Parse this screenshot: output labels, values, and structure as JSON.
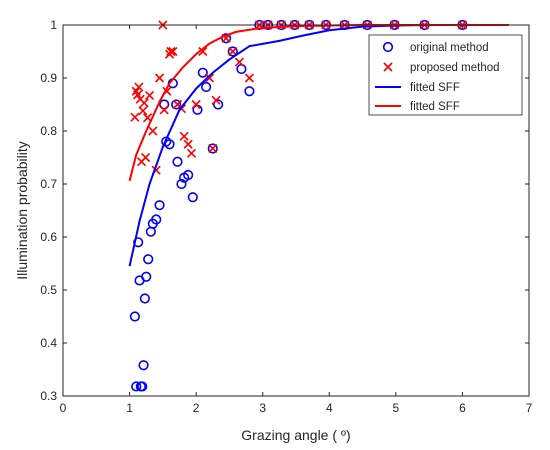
{
  "chart_data": {
    "type": "scatter",
    "xlabel": "Grazing angle ( º)",
    "ylabel": "Illumination probability",
    "xlim": [
      0,
      7
    ],
    "ylim": [
      0.3,
      1.0
    ],
    "xticks": [
      "0",
      "1",
      "2",
      "3",
      "4",
      "5",
      "6",
      "7"
    ],
    "yticks": [
      "0.3",
      "0.4",
      "0.5",
      "0.6",
      "0.7",
      "0.8",
      "0.9",
      "1"
    ],
    "grid": false,
    "legend_position": "top-right",
    "series": [
      {
        "name": "original method",
        "kind": "scatter",
        "marker": "circle",
        "color": "#0000ff",
        "points": [
          [
            1.08,
            0.45
          ],
          [
            1.1,
            0.318
          ],
          [
            1.13,
            0.59
          ],
          [
            1.15,
            0.518
          ],
          [
            1.17,
            0.318
          ],
          [
            1.19,
            0.318
          ],
          [
            1.21,
            0.358
          ],
          [
            1.23,
            0.484
          ],
          [
            1.25,
            0.525
          ],
          [
            1.28,
            0.558
          ],
          [
            1.32,
            0.61
          ],
          [
            1.35,
            0.625
          ],
          [
            1.4,
            0.633
          ],
          [
            1.45,
            0.66
          ],
          [
            1.52,
            0.85
          ],
          [
            1.55,
            0.78
          ],
          [
            1.6,
            0.775
          ],
          [
            1.65,
            0.89
          ],
          [
            1.7,
            0.85
          ],
          [
            1.72,
            0.742
          ],
          [
            1.78,
            0.7
          ],
          [
            1.82,
            0.712
          ],
          [
            1.88,
            0.717
          ],
          [
            1.95,
            0.675
          ],
          [
            2.02,
            0.84
          ],
          [
            2.1,
            0.91
          ],
          [
            2.15,
            0.883
          ],
          [
            2.25,
            0.767
          ],
          [
            2.33,
            0.85
          ],
          [
            2.45,
            0.975
          ],
          [
            2.55,
            0.95
          ],
          [
            2.68,
            0.917
          ],
          [
            2.8,
            0.875
          ],
          [
            2.95,
            1.0
          ],
          [
            3.08,
            1.0
          ],
          [
            3.28,
            1.0
          ],
          [
            3.48,
            1.0
          ],
          [
            3.7,
            1.0
          ],
          [
            3.95,
            1.0
          ],
          [
            4.23,
            1.0
          ],
          [
            4.57,
            1.0
          ],
          [
            4.98,
            1.0
          ],
          [
            5.43,
            1.0
          ],
          [
            6.0,
            1.0
          ]
        ]
      },
      {
        "name": "proposed method",
        "kind": "scatter",
        "marker": "x",
        "color": "#ff0000",
        "points": [
          [
            1.08,
            0.826
          ],
          [
            1.1,
            0.875
          ],
          [
            1.12,
            0.868
          ],
          [
            1.14,
            0.883
          ],
          [
            1.16,
            0.86
          ],
          [
            1.18,
            0.742
          ],
          [
            1.2,
            0.838
          ],
          [
            1.22,
            0.853
          ],
          [
            1.24,
            0.75
          ],
          [
            1.27,
            0.825
          ],
          [
            1.3,
            0.867
          ],
          [
            1.35,
            0.8
          ],
          [
            1.4,
            0.726
          ],
          [
            1.45,
            0.9
          ],
          [
            1.5,
            1.0
          ],
          [
            1.52,
            0.84
          ],
          [
            1.56,
            0.875
          ],
          [
            1.6,
            0.945
          ],
          [
            1.62,
            0.95
          ],
          [
            1.65,
            0.95
          ],
          [
            1.72,
            0.85
          ],
          [
            1.78,
            0.842
          ],
          [
            1.82,
            0.79
          ],
          [
            1.88,
            0.775
          ],
          [
            1.93,
            0.758
          ],
          [
            2.0,
            0.85
          ],
          [
            2.1,
            0.95
          ],
          [
            2.2,
            0.9
          ],
          [
            2.25,
            0.767
          ],
          [
            2.3,
            0.858
          ],
          [
            2.45,
            0.975
          ],
          [
            2.55,
            0.95
          ],
          [
            2.65,
            0.93
          ],
          [
            2.8,
            0.9
          ],
          [
            2.95,
            1.0
          ],
          [
            3.08,
            1.0
          ],
          [
            3.28,
            1.0
          ],
          [
            3.48,
            1.0
          ],
          [
            3.7,
            1.0
          ],
          [
            3.95,
            1.0
          ],
          [
            4.23,
            1.0
          ],
          [
            4.57,
            1.0
          ],
          [
            4.98,
            1.0
          ],
          [
            5.43,
            1.0
          ],
          [
            6.0,
            1.0
          ]
        ]
      },
      {
        "name": "fitted SFF",
        "kind": "line",
        "color": "#0000ff",
        "points": [
          [
            1.0,
            0.545
          ],
          [
            1.15,
            0.63
          ],
          [
            1.3,
            0.7
          ],
          [
            1.5,
            0.77
          ],
          [
            1.75,
            0.84
          ],
          [
            2.0,
            0.88
          ],
          [
            2.25,
            0.91
          ],
          [
            2.5,
            0.935
          ],
          [
            2.8,
            0.96
          ],
          [
            3.25,
            0.97
          ],
          [
            3.6,
            0.98
          ],
          [
            4.0,
            0.99
          ],
          [
            4.5,
            0.997
          ],
          [
            5.0,
            0.999
          ],
          [
            5.5,
            1.0
          ],
          [
            6.0,
            1.0
          ],
          [
            6.7,
            1.0
          ]
        ]
      },
      {
        "name": "fitted SFF",
        "kind": "line",
        "color": "#ff0000",
        "points": [
          [
            1.0,
            0.706
          ],
          [
            1.1,
            0.755
          ],
          [
            1.25,
            0.8
          ],
          [
            1.45,
            0.855
          ],
          [
            1.6,
            0.89
          ],
          [
            1.8,
            0.92
          ],
          [
            2.0,
            0.945
          ],
          [
            2.2,
            0.965
          ],
          [
            2.4,
            0.978
          ],
          [
            2.6,
            0.987
          ],
          [
            2.9,
            0.993
          ],
          [
            3.2,
            0.996
          ],
          [
            3.6,
            0.998
          ],
          [
            4.0,
            0.999
          ],
          [
            4.5,
            1.0
          ],
          [
            5.0,
            1.0
          ],
          [
            6.0,
            1.0
          ],
          [
            6.7,
            1.0
          ]
        ]
      }
    ]
  }
}
